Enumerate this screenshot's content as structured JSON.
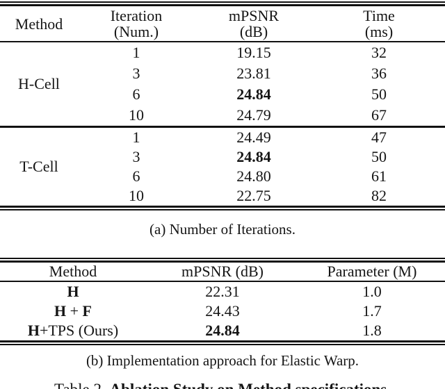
{
  "colors": {
    "background": "#ffffff",
    "text": "#151515",
    "rule": "#111111"
  },
  "table_a": {
    "headers": {
      "method": "Method",
      "col2_line1": "Iteration",
      "col2_line2": "(Num.)",
      "col3_line1": "mPSNR",
      "col3_line2": "(dB)",
      "col4_line1": "Time",
      "col4_line2": "(ms)"
    },
    "groups": [
      {
        "method": "H-Cell",
        "rows": [
          {
            "iteration": "1",
            "mpsnr": "19.15",
            "time": "32"
          },
          {
            "iteration": "3",
            "mpsnr": "23.81",
            "time": "36"
          },
          {
            "iteration": "6",
            "mpsnr": "24.84",
            "time": "50"
          },
          {
            "iteration": "10",
            "mpsnr": "24.79",
            "time": "67"
          }
        ]
      },
      {
        "method": "T-Cell",
        "rows": [
          {
            "iteration": "1",
            "mpsnr": "24.49",
            "time": "47"
          },
          {
            "iteration": "3",
            "mpsnr": "24.84",
            "time": "50"
          },
          {
            "iteration": "6",
            "mpsnr": "24.80",
            "time": "61"
          },
          {
            "iteration": "10",
            "mpsnr": "22.75",
            "time": "82"
          }
        ]
      }
    ],
    "caption": "(a) Number of Iterations."
  },
  "table_b": {
    "headers": {
      "method": "Method",
      "mpsnr": "mPSNR (dB)",
      "parameter": "Parameter (M)"
    },
    "rows": [
      {
        "method_bold1": "H",
        "method_regular": "",
        "method_bold2": "",
        "mpsnr": "22.31",
        "parameter": "1.0"
      },
      {
        "method_bold1": "H",
        "method_regular": " + ",
        "method_bold2": "F",
        "mpsnr": "24.43",
        "parameter": "1.7"
      },
      {
        "method_bold1": "H",
        "method_regular": "+TPS (Ours)",
        "method_bold2": "",
        "mpsnr": "24.84",
        "parameter": "1.8"
      }
    ],
    "caption": "(b) Implementation approach for Elastic Warp."
  },
  "figure_caption": {
    "prefix": "Table 2. ",
    "title": "Ablation Study on Method specifications."
  }
}
